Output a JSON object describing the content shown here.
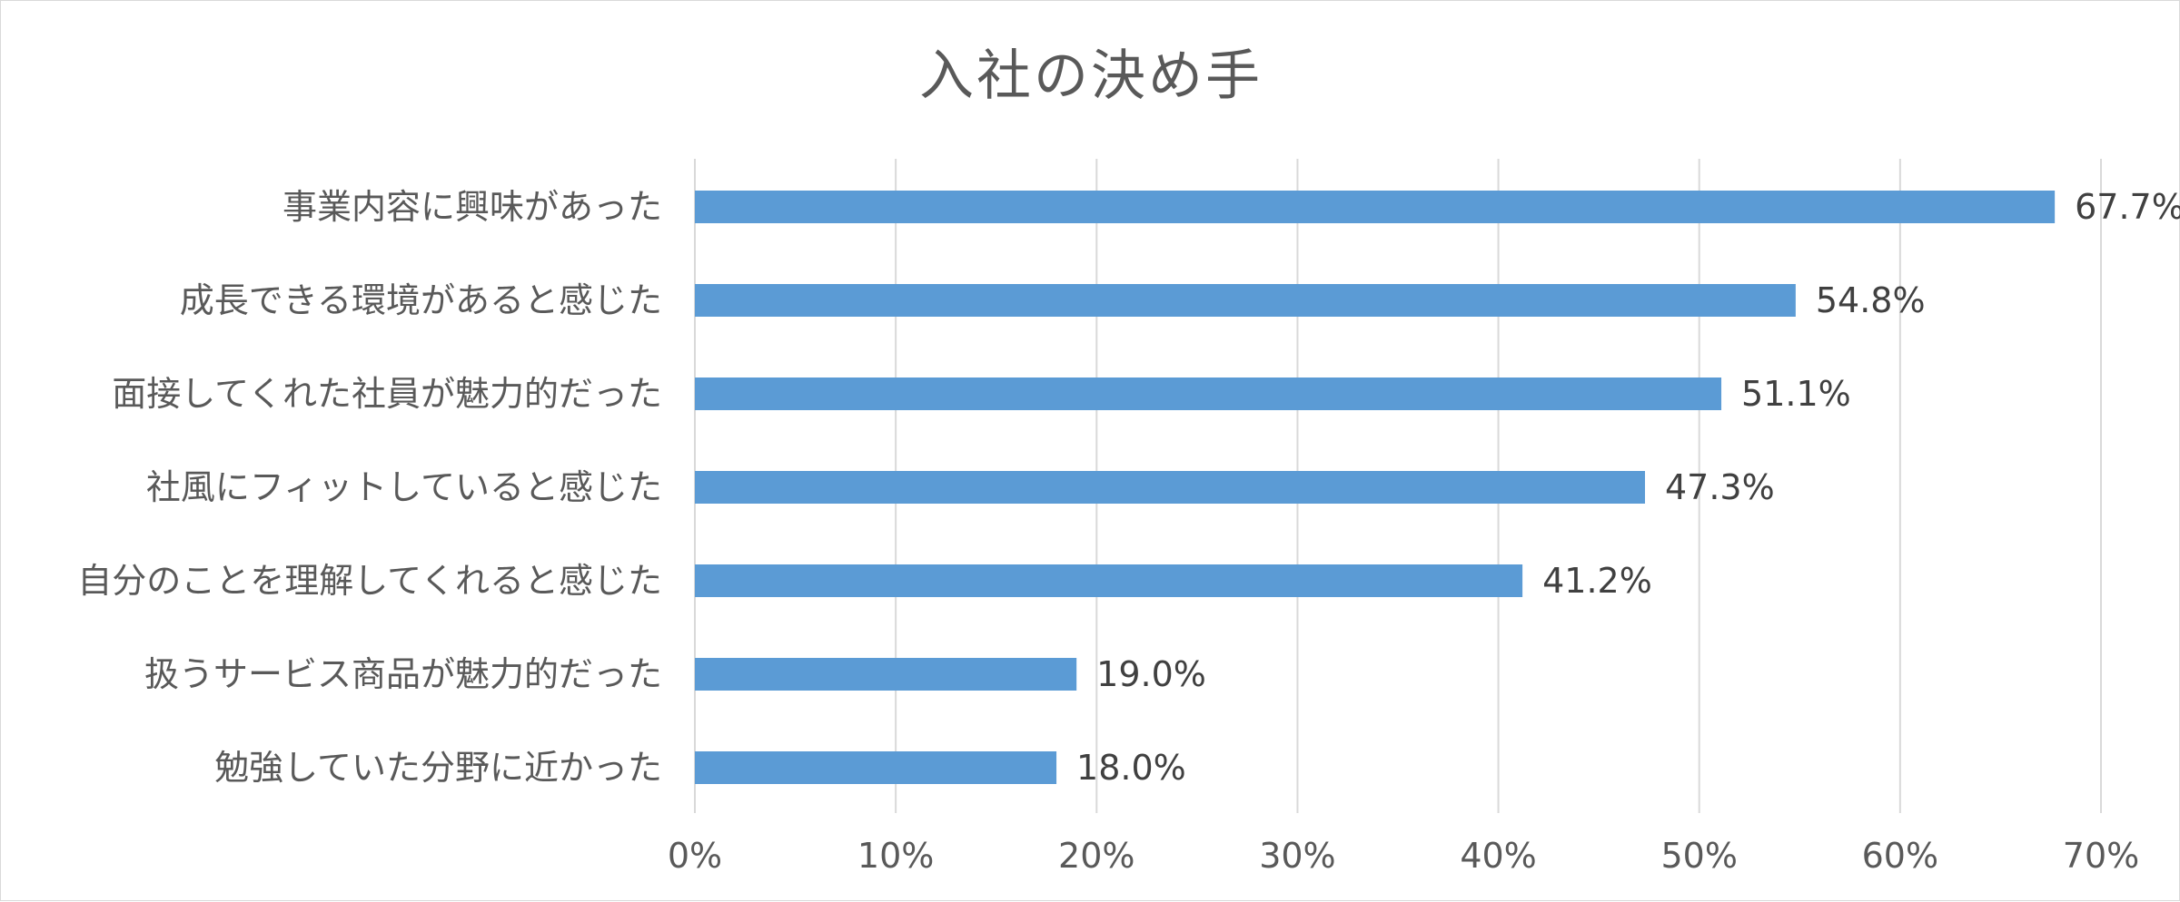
{
  "chart_data": {
    "type": "bar",
    "orientation": "horizontal",
    "title": "入社の決め手",
    "categories": [
      "事業内容に興味があった",
      "成長できる環境があると感じた",
      "面接してくれた社員が魅力的だった",
      "社風にフィットしていると感じた",
      "自分のことを理解してくれると感じた",
      "扱うサービス商品が魅力的だった",
      "勉強していた分野に近かった"
    ],
    "values": [
      67.7,
      54.8,
      51.1,
      47.3,
      41.2,
      19.0,
      18.0
    ],
    "data_labels": [
      "67.7%",
      "54.8%",
      "51.1%",
      "47.3%",
      "41.2%",
      "19.0%",
      "18.0%"
    ],
    "x_ticks": [
      "0%",
      "10%",
      "20%",
      "30%",
      "40%",
      "50%",
      "60%",
      "70%"
    ],
    "xlim": [
      0,
      70
    ],
    "grid": true,
    "legend": "none",
    "bar_color": "#5b9bd5"
  }
}
